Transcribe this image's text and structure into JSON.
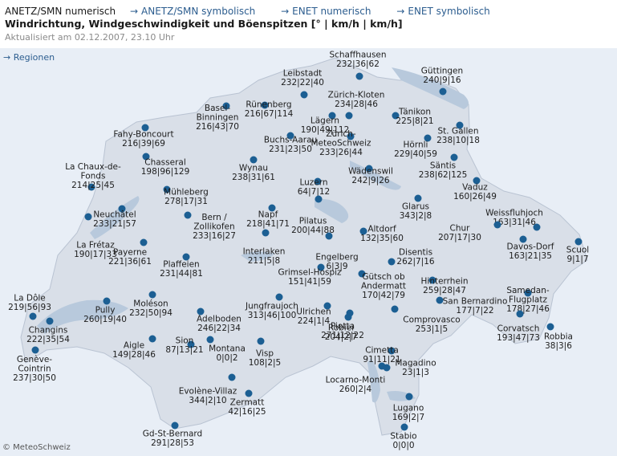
{
  "header": {
    "tabs": [
      {
        "label": "ANETZ/SMN numerisch",
        "active": true
      },
      {
        "label": "ANETZ/SMN symbolisch",
        "active": false
      },
      {
        "label": "ENET numerisch",
        "active": false
      },
      {
        "label": "ENET symbolisch",
        "active": false
      }
    ],
    "link_arrow": "→",
    "title": "Windrichtung, Windgeschwindigkeit und Böenspitzen [° | km/h | km/h]",
    "updated": "Aktualisiert am 02.12.2007, 23.10 Uhr"
  },
  "regions_link": "→ Regionen",
  "copyright": "© MeteoSchweiz",
  "colors": {
    "map_bg": "#e8eef6",
    "land": "#d9dfe8",
    "lake": "#b8c9dc",
    "station": "#1c5f93",
    "link": "#2c5d8f"
  },
  "stations": [
    {
      "name": [
        "Schaffhausen"
      ],
      "values": "232|36|62"
    },
    {
      "name": [
        "Güttingen"
      ],
      "values": "240|9|16"
    },
    {
      "name": [
        "Leibstadt"
      ],
      "values": "232|22|40"
    },
    {
      "name": [
        "Rünenberg"
      ],
      "values": "216|67|114"
    },
    {
      "name": [
        "Zürich-Kloten"
      ],
      "values": "234|28|46"
    },
    {
      "name": [
        "Basel-",
        "Binningen"
      ],
      "values": "216|43|70"
    },
    {
      "name": [
        "Tänikon"
      ],
      "values": "225|8|21"
    },
    {
      "name": [
        "Lägern"
      ],
      "values": "190|49|112"
    },
    {
      "name": [
        "St. Gallen"
      ],
      "values": "238|10|18"
    },
    {
      "name": [
        "Fahy-Boncourt"
      ],
      "values": "216|39|69"
    },
    {
      "name": [
        "Buchs-Aarau"
      ],
      "values": "231|23|50"
    },
    {
      "name": [
        "Zürich-",
        "MeteoSchweiz"
      ],
      "values": "233|26|44"
    },
    {
      "name": [
        "Hörnli"
      ],
      "values": "229|40|59"
    },
    {
      "name": [
        "Chasseral"
      ],
      "values": "198|96|129"
    },
    {
      "name": [
        "Wynau"
      ],
      "values": "238|31|61"
    },
    {
      "name": [
        "Säntis"
      ],
      "values": "238|62|125"
    },
    {
      "name": [
        "Wädenswil"
      ],
      "values": "242|9|26"
    },
    {
      "name": [
        "La Chaux-de-",
        "Fonds"
      ],
      "values": "214|25|45"
    },
    {
      "name": [
        "Luzern"
      ],
      "values": "64|7|12"
    },
    {
      "name": [
        "Vaduz"
      ],
      "values": "160|26|49"
    },
    {
      "name": [
        "Mühleberg"
      ],
      "values": "278|17|31"
    },
    {
      "name": [
        "Glarus"
      ],
      "values": "343|2|8"
    },
    {
      "name": [
        "Neuchâtel"
      ],
      "values": "233|21|57"
    },
    {
      "name": [
        "Bern /",
        "Zollikofen"
      ],
      "values": "233|16|27"
    },
    {
      "name": [
        "Napf"
      ],
      "values": "218|41|71"
    },
    {
      "name": [
        "Pilatus"
      ],
      "values": "200|44|88"
    },
    {
      "name": [
        "Weissfluhjoch"
      ],
      "values": "163|31|46"
    },
    {
      "name": [
        "Chur"
      ],
      "values": "207|17|30"
    },
    {
      "name": [
        "Altdorf"
      ],
      "values": "132|35|60"
    },
    {
      "name": [
        "La Frétaz"
      ],
      "values": "190|17|33"
    },
    {
      "name": [
        "Payerne"
      ],
      "values": "221|36|61"
    },
    {
      "name": [
        "Davos-Dorf"
      ],
      "values": "163|21|35"
    },
    {
      "name": [
        "Scuol"
      ],
      "values": "9|1|7"
    },
    {
      "name": [
        "Interlaken"
      ],
      "values": "211|5|8"
    },
    {
      "name": [
        "Engelberg"
      ],
      "values": "6|3|9"
    },
    {
      "name": [
        "Disentis"
      ],
      "values": "262|7|16"
    },
    {
      "name": [
        "Plaffeien"
      ],
      "values": "231|44|81"
    },
    {
      "name": [
        "Grimsel-Hospiz"
      ],
      "values": "151|41|59"
    },
    {
      "name": [
        "Gütsch ob",
        "Andermatt"
      ],
      "values": "170|42|79"
    },
    {
      "name": [
        "Hinterrhein"
      ],
      "values": "259|28|47"
    },
    {
      "name": [
        "Samedan-",
        "Flugplatz"
      ],
      "values": "178|27|46"
    },
    {
      "name": [
        "La Dôle"
      ],
      "values": "219|56|93"
    },
    {
      "name": [
        "Jungfraujoch"
      ],
      "values": "313|46|100"
    },
    {
      "name": [
        "San Bernardino"
      ],
      "values": "177|7|22"
    },
    {
      "name": [
        "Pully"
      ],
      "values": "260|19|40"
    },
    {
      "name": [
        "Moléson"
      ],
      "values": "232|50|94"
    },
    {
      "name": [
        "Adelboden"
      ],
      "values": "246|22|34"
    },
    {
      "name": [
        "Ulrichen"
      ],
      "values": "224|1|4"
    },
    {
      "name": [
        "Piotta"
      ],
      "values": "271|12|22"
    },
    {
      "name": [
        "Comprovasco"
      ],
      "values": "253|1|5"
    },
    {
      "name": [
        "Corvatsch"
      ],
      "values": "193|47|73"
    },
    {
      "name": [
        "Changins"
      ],
      "values": "222|35|54"
    },
    {
      "name": [
        "Robiei"
      ],
      "values": "204|2|7"
    },
    {
      "name": [
        "Robbia"
      ],
      "values": "38|3|6"
    },
    {
      "name": [
        "Sion"
      ],
      "values": "87|13|21"
    },
    {
      "name": [
        "Aigle"
      ],
      "values": "149|28|46"
    },
    {
      "name": [
        "Montana"
      ],
      "values": "0|0|2"
    },
    {
      "name": [
        "Visp"
      ],
      "values": "108|2|5"
    },
    {
      "name": [
        "Cimetta"
      ],
      "values": "91|11|21"
    },
    {
      "name": [
        "Magadino"
      ],
      "values": "23|1|3"
    },
    {
      "name": [
        "Genève-",
        "Cointrin"
      ],
      "values": "237|30|50"
    },
    {
      "name": [
        "Locarno-Monti"
      ],
      "values": "260|2|4"
    },
    {
      "name": [
        "Evolène-Villaz"
      ],
      "values": "344|2|10"
    },
    {
      "name": [
        "Zermatt"
      ],
      "values": "42|16|25"
    },
    {
      "name": [
        "Lugano"
      ],
      "values": "169|2|7"
    },
    {
      "name": [
        "Gd-St-Bernard"
      ],
      "values": "291|28|53"
    },
    {
      "name": [
        "Stabio"
      ],
      "values": "0|0|0"
    }
  ]
}
